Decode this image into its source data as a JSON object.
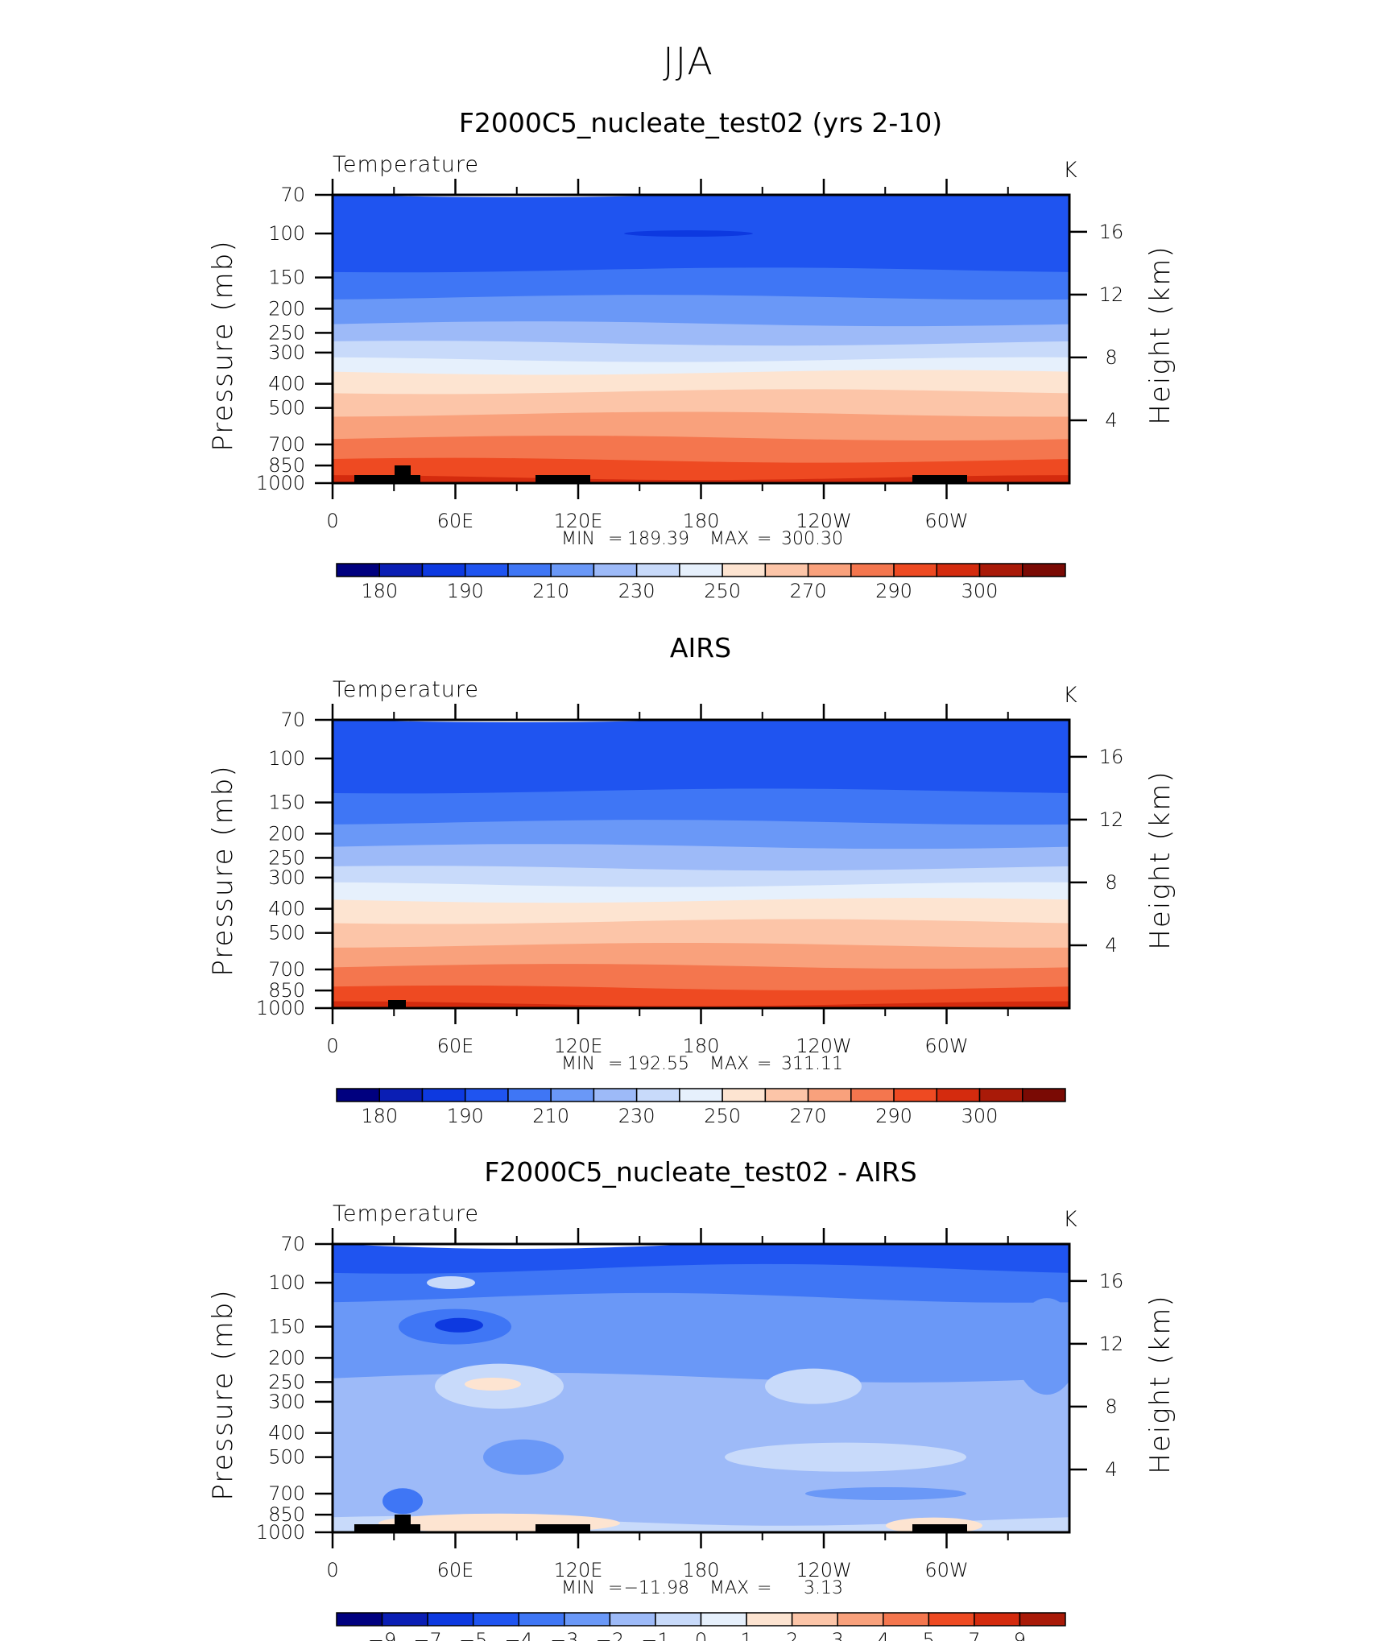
{
  "figure": {
    "title": "JJA"
  },
  "chart_data": [
    {
      "type": "heatmap",
      "title": "F2000C5_nucleate_test02 (yrs 2-10)",
      "left_label": "Temperature",
      "right_label": "K",
      "ylabel": "Pressure (mb)",
      "y2label": "Height (km)",
      "xticks": [
        "0",
        "60E",
        "120E",
        "180",
        "120W",
        "60W"
      ],
      "yticks": [
        "70",
        "100",
        "150",
        "200",
        "250",
        "300",
        "400",
        "500",
        "700",
        "850",
        "1000"
      ],
      "y2ticks": [
        "16",
        "12",
        "8",
        "4"
      ],
      "stats": {
        "min_label": "MIN",
        "min": "189.39",
        "max_label": "MAX",
        "max": "300.30"
      },
      "ylim": [
        1000,
        70
      ],
      "y2lim": [
        0,
        18
      ],
      "xlim": [
        0,
        360
      ],
      "colorbar": {
        "labels": [
          "180",
          "190",
          "210",
          "230",
          "250",
          "270",
          "290",
          "300"
        ],
        "colors": [
          "#00007f",
          "#0a1eb4",
          "#0d39e0",
          "#1f54f0",
          "#3f76f5",
          "#6a98f7",
          "#9dbaf8",
          "#c8dafa",
          "#e6f0fc",
          "#fde4d1",
          "#fcc5a8",
          "#f9a17c",
          "#f4764e",
          "#ee4a22",
          "#d42b0e",
          "#a91a08",
          "#7a0a04"
        ]
      },
      "bands": [
        {
          "p": 70,
          "color": "#1f54f0"
        },
        {
          "p": 140,
          "color": "#3f76f5"
        },
        {
          "p": 180,
          "color": "#6a98f7"
        },
        {
          "p": 230,
          "color": "#9dbaf8"
        },
        {
          "p": 275,
          "color": "#c8dafa"
        },
        {
          "p": 320,
          "color": "#e6f0fc"
        },
        {
          "p": 360,
          "color": "#fde4d1"
        },
        {
          "p": 430,
          "color": "#fcc5a8"
        },
        {
          "p": 530,
          "color": "#f9a17c"
        },
        {
          "p": 660,
          "color": "#f4764e"
        },
        {
          "p": 810,
          "color": "#ee4a22"
        },
        {
          "p": 950,
          "color": "#d42b0e"
        }
      ]
    },
    {
      "type": "heatmap",
      "title": "AIRS",
      "left_label": "Temperature",
      "right_label": "K",
      "ylabel": "Pressure (mb)",
      "y2label": "Height (km)",
      "xticks": [
        "0",
        "60E",
        "120E",
        "180",
        "120W",
        "60W"
      ],
      "yticks": [
        "70",
        "100",
        "150",
        "200",
        "250",
        "300",
        "400",
        "500",
        "700",
        "850",
        "1000"
      ],
      "y2ticks": [
        "16",
        "12",
        "8",
        "4"
      ],
      "stats": {
        "min_label": "MIN",
        "min": "192.55",
        "max_label": "MAX",
        "max": "311.11"
      },
      "ylim": [
        1000,
        70
      ],
      "y2lim": [
        0,
        18
      ],
      "xlim": [
        0,
        360
      ],
      "colorbar": {
        "labels": [
          "180",
          "190",
          "210",
          "230",
          "250",
          "270",
          "290",
          "300"
        ],
        "colors": [
          "#00007f",
          "#0a1eb4",
          "#0d39e0",
          "#1f54f0",
          "#3f76f5",
          "#6a98f7",
          "#9dbaf8",
          "#c8dafa",
          "#e6f0fc",
          "#fde4d1",
          "#fcc5a8",
          "#f9a17c",
          "#f4764e",
          "#ee4a22",
          "#d42b0e",
          "#a91a08",
          "#7a0a04"
        ]
      },
      "bands": [
        {
          "p": 70,
          "color": "#1f54f0"
        },
        {
          "p": 135,
          "color": "#3f76f5"
        },
        {
          "p": 180,
          "color": "#6a98f7"
        },
        {
          "p": 225,
          "color": "#9dbaf8"
        },
        {
          "p": 275,
          "color": "#c8dafa"
        },
        {
          "p": 320,
          "color": "#e6f0fc"
        },
        {
          "p": 370,
          "color": "#fde4d1"
        },
        {
          "p": 450,
          "color": "#fcc5a8"
        },
        {
          "p": 560,
          "color": "#f9a17c"
        },
        {
          "p": 680,
          "color": "#f4764e"
        },
        {
          "p": 830,
          "color": "#ee4a22"
        },
        {
          "p": 960,
          "color": "#d42b0e"
        }
      ]
    },
    {
      "type": "heatmap",
      "title": "F2000C5_nucleate_test02 - AIRS",
      "left_label": "Temperature",
      "right_label": "K",
      "ylabel": "Pressure (mb)",
      "y2label": "Height (km)",
      "xticks": [
        "0",
        "60E",
        "120E",
        "180",
        "120W",
        "60W"
      ],
      "yticks": [
        "70",
        "100",
        "150",
        "200",
        "250",
        "300",
        "400",
        "500",
        "700",
        "850",
        "1000"
      ],
      "y2ticks": [
        "16",
        "12",
        "8",
        "4"
      ],
      "stats": {
        "min_label": "MIN",
        "min": "−11.98",
        "max_label": "MAX",
        "max": "3.13"
      },
      "ylim": [
        1000,
        70
      ],
      "y2lim": [
        0,
        18
      ],
      "xlim": [
        0,
        360
      ],
      "colorbar": {
        "labels": [
          "−9",
          "−7",
          "−5",
          "−4",
          "−3",
          "−2",
          "−1",
          "0",
          "1",
          "2",
          "3",
          "4",
          "5",
          "7",
          "9"
        ],
        "colors": [
          "#00007f",
          "#0a1eb4",
          "#0d39e0",
          "#1f54f0",
          "#3f76f5",
          "#6a98f7",
          "#9dbaf8",
          "#c8dafa",
          "#e6f0fc",
          "#fde4d1",
          "#fcc5a8",
          "#f9a17c",
          "#f4764e",
          "#ee4a22",
          "#d42b0e",
          "#a91a08"
        ]
      },
      "bands": [
        {
          "p": 70,
          "color": "#1f54f0"
        },
        {
          "p": 88,
          "color": "#3f76f5"
        },
        {
          "p": 115,
          "color": "#6a98f7"
        },
        {
          "p": 240,
          "color": "#9dbaf8"
        },
        {
          "p": 900,
          "color": "#c8dafa"
        }
      ]
    }
  ]
}
